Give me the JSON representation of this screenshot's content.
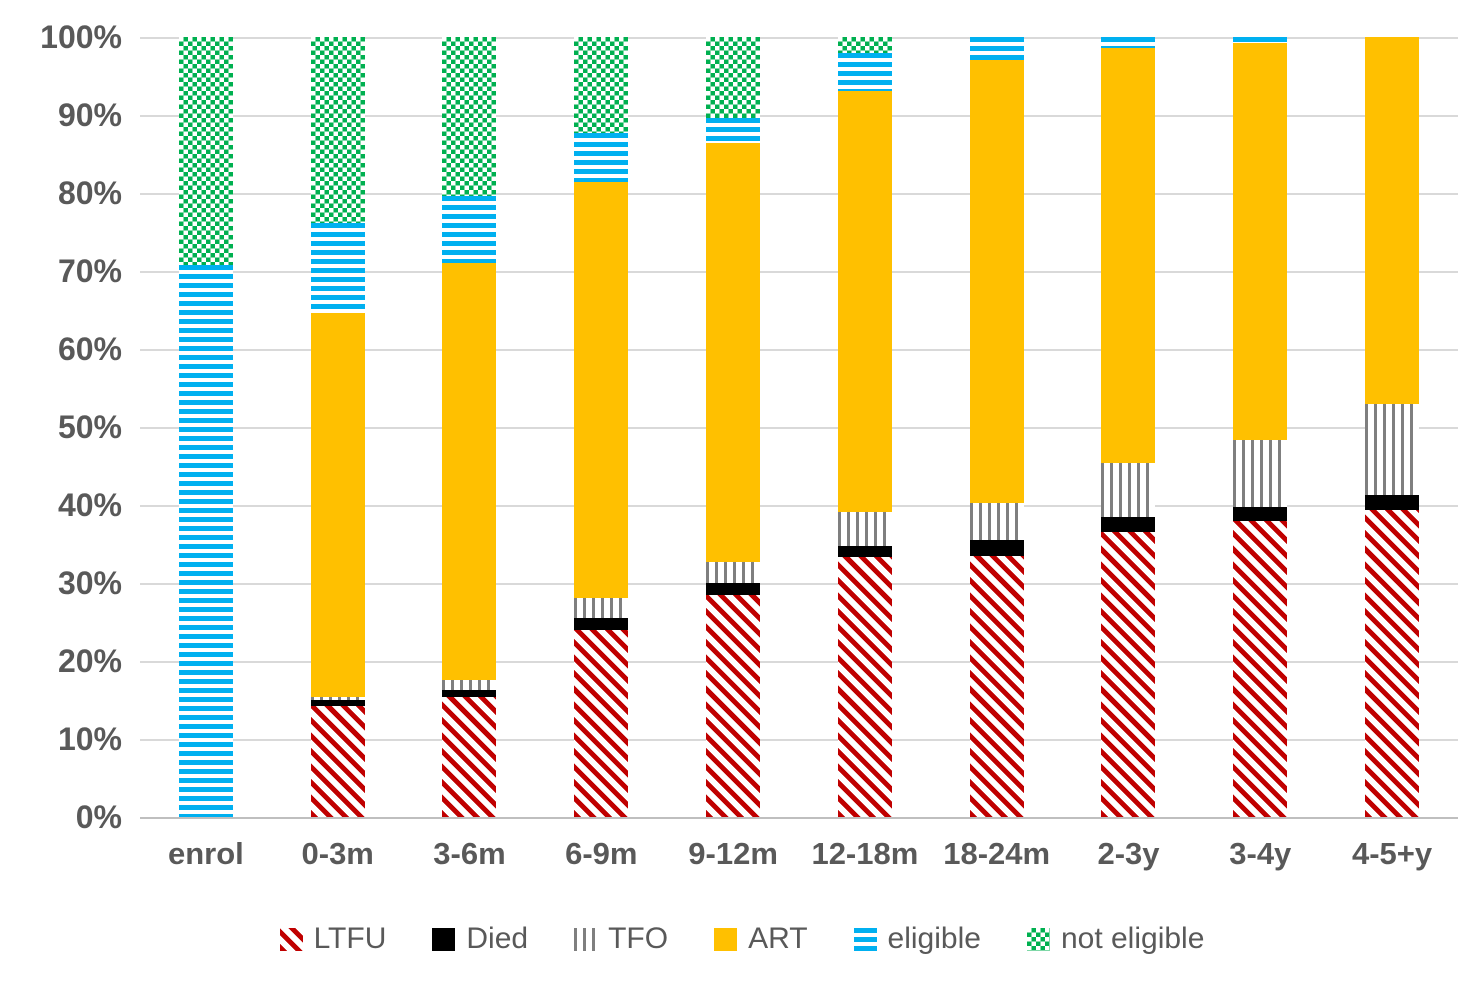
{
  "chart_data": {
    "type": "bar",
    "variant": "stacked-100-percent",
    "grid": true,
    "legend_position": "bottom",
    "ylim": [
      0,
      100
    ],
    "y_ticks": [
      "0%",
      "10%",
      "20%",
      "30%",
      "40%",
      "50%",
      "60%",
      "70%",
      "80%",
      "90%",
      "100%"
    ],
    "xlabel": "",
    "ylabel": "",
    "title": "",
    "categories": [
      "enrol",
      "0-3m",
      "3-6m",
      "6-9m",
      "9-12m",
      "12-18m",
      "18-24m",
      "2-3y",
      "3-4y",
      "4-5+y"
    ],
    "series": [
      {
        "name": "LTFU",
        "pattern": "diagonal-red-stripes",
        "color": "#c00000",
        "css": "p-ltfu",
        "values": [
          0,
          14.2,
          15.4,
          24.0,
          28.5,
          33.3,
          33.5,
          36.5,
          37.9,
          39.4
        ]
      },
      {
        "name": "Died",
        "pattern": "solid-black",
        "color": "#000000",
        "css": "p-died",
        "values": [
          0,
          0.8,
          0.9,
          1.5,
          1.5,
          1.4,
          2.0,
          2.0,
          1.8,
          1.9
        ]
      },
      {
        "name": "TFO",
        "pattern": "vertical-gray-lines",
        "color": "#7f7f7f",
        "css": "p-tfo",
        "values": [
          0,
          0.4,
          1.3,
          2.6,
          2.7,
          4.4,
          4.8,
          6.9,
          8.6,
          11.7
        ]
      },
      {
        "name": "ART",
        "pattern": "solid-yellow",
        "color": "#ffc000",
        "css": "p-art",
        "values": [
          0,
          49.2,
          53.4,
          53.3,
          53.7,
          54.0,
          56.7,
          53.2,
          50.9,
          47.0
        ]
      },
      {
        "name": "eligible",
        "pattern": "horizontal-blue-stripes",
        "color": "#00b0f0",
        "css": "p-elig",
        "values": [
          70.8,
          11.6,
          8.6,
          6.3,
          3.2,
          4.8,
          3.0,
          1.4,
          0.8,
          0
        ]
      },
      {
        "name": "not eligible",
        "pattern": "green-checkerboard",
        "color": "#00b050",
        "css": "p-nelig",
        "values": [
          29.2,
          23.8,
          20.4,
          12.3,
          10.4,
          2.1,
          0,
          0,
          0,
          0
        ]
      }
    ],
    "colors": {
      "gridline": "#d9d9d9",
      "axis_line": "#bfbfbf",
      "axis_text": "#595959"
    }
  }
}
